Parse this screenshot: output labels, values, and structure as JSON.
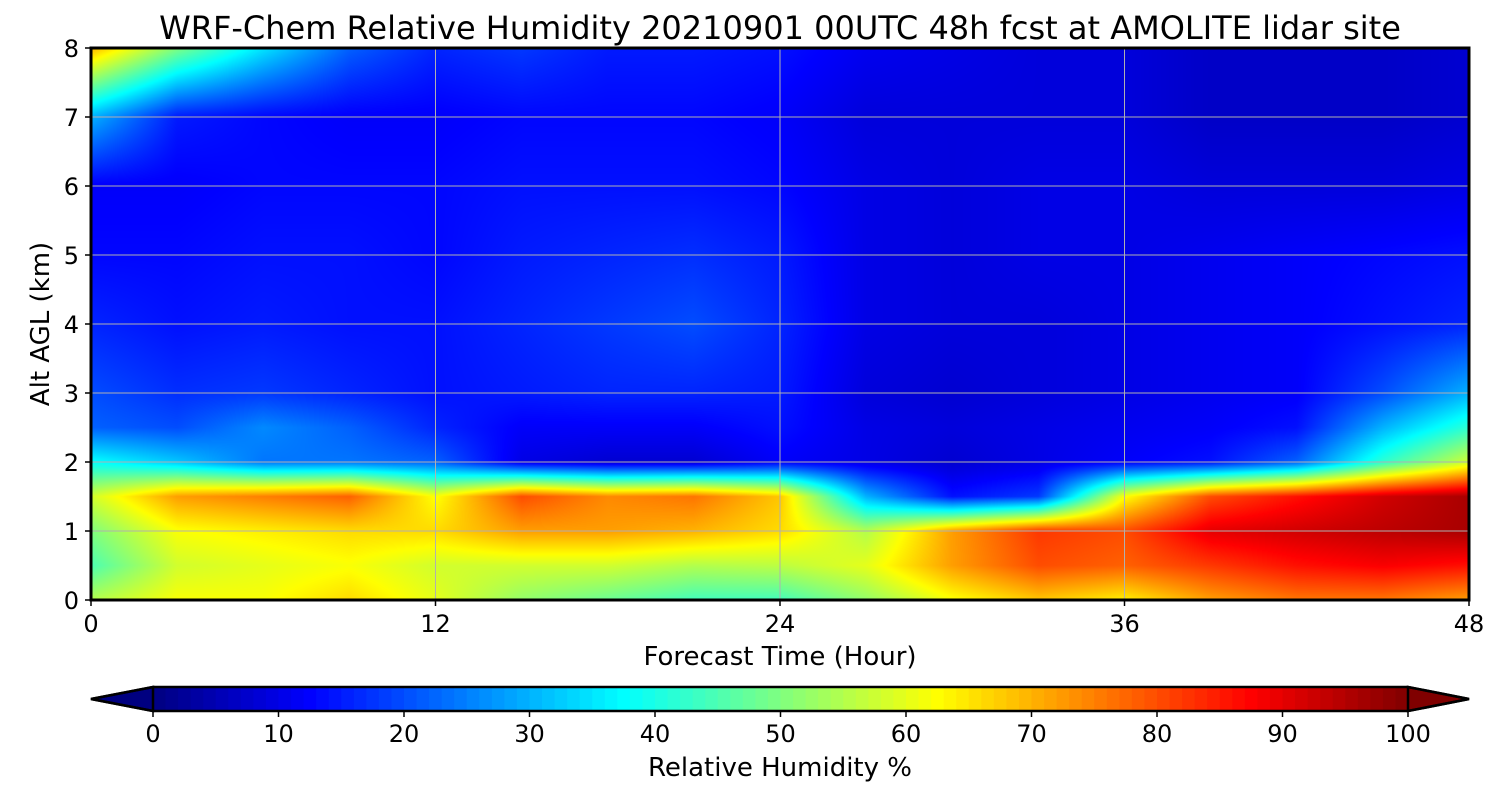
{
  "chart_data": {
    "type": "heatmap",
    "title": "WRF-Chem Relative Humidity 20210901 00UTC 48h fcst at AMOLITE lidar site",
    "xlabel": "Forecast Time (Hour)",
    "ylabel": "Alt AGL (km)",
    "xlim": [
      0,
      48
    ],
    "ylim": [
      0,
      8
    ],
    "xticks": [
      0,
      12,
      24,
      36,
      48
    ],
    "yticks": [
      0,
      1,
      2,
      3,
      4,
      5,
      6,
      7,
      8
    ],
    "grid": true,
    "colormap": "jet",
    "colorbar": {
      "label": "Relative Humidity %",
      "orientation": "horizontal",
      "placement": "bottom",
      "range": [
        0,
        100
      ],
      "ticks": [
        0,
        10,
        20,
        30,
        40,
        50,
        60,
        70,
        80,
        90,
        100
      ],
      "extend": "both"
    },
    "x": [
      0,
      3,
      6,
      9,
      12,
      15,
      18,
      21,
      24,
      27,
      30,
      33,
      36,
      39,
      42,
      45,
      48
    ],
    "y": [
      0,
      0.5,
      1,
      1.5,
      2,
      2.5,
      3,
      4,
      5,
      6,
      7,
      8
    ],
    "z": [
      [
        55,
        62,
        62,
        66,
        60,
        52,
        48,
        44,
        44,
        52,
        62,
        68,
        64,
        72,
        76,
        76,
        72
      ],
      [
        45,
        58,
        60,
        62,
        58,
        58,
        58,
        55,
        56,
        60,
        72,
        80,
        78,
        82,
        86,
        88,
        86
      ],
      [
        50,
        62,
        64,
        66,
        66,
        72,
        72,
        70,
        66,
        55,
        72,
        82,
        80,
        90,
        92,
        94,
        96
      ],
      [
        58,
        72,
        75,
        78,
        62,
        80,
        74,
        76,
        68,
        30,
        14,
        18,
        62,
        80,
        86,
        92,
        96
      ],
      [
        38,
        32,
        24,
        24,
        22,
        10,
        8,
        8,
        12,
        10,
        8,
        10,
        12,
        14,
        22,
        42,
        58
      ],
      [
        22,
        20,
        26,
        22,
        16,
        12,
        12,
        12,
        14,
        10,
        9,
        10,
        11,
        12,
        14,
        30,
        42
      ],
      [
        20,
        17,
        18,
        16,
        14,
        15,
        16,
        16,
        15,
        9,
        8,
        9,
        10,
        11,
        12,
        20,
        30
      ],
      [
        16,
        14,
        15,
        14,
        14,
        16,
        18,
        20,
        16,
        10,
        9,
        9,
        10,
        11,
        12,
        14,
        16
      ],
      [
        13,
        13,
        14,
        14,
        13,
        15,
        16,
        17,
        15,
        10,
        9,
        10,
        10,
        11,
        12,
        13,
        14
      ],
      [
        12,
        12,
        13,
        13,
        13,
        14,
        14,
        14,
        13,
        10,
        9,
        10,
        10,
        9,
        9,
        9,
        10
      ],
      [
        30,
        15,
        13,
        12,
        12,
        13,
        13,
        13,
        12,
        9,
        9,
        9,
        9,
        7,
        7,
        7,
        8
      ],
      [
        70,
        50,
        35,
        22,
        16,
        18,
        15,
        15,
        14,
        11,
        10,
        9,
        9,
        7,
        7,
        7,
        8
      ]
    ]
  }
}
